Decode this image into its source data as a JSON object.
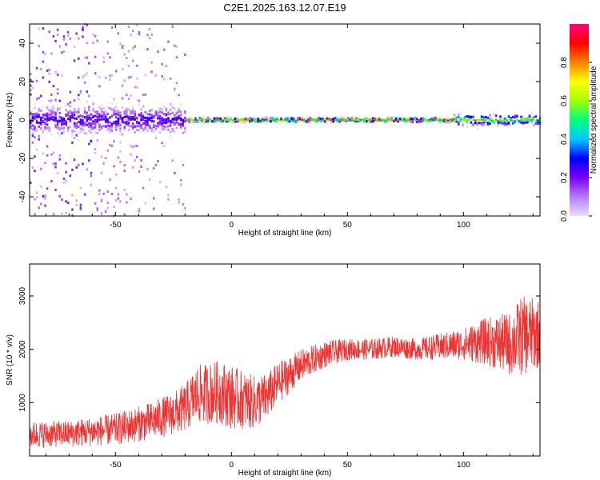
{
  "figure": {
    "title": "C2E1.2025.163.12.07.E19"
  },
  "chart_data": [
    {
      "type": "heatmap",
      "xlabel": "Height of straight line (km)",
      "ylabel": "Frequency (Hz)",
      "xlim": [
        -87,
        133
      ],
      "ylim": [
        -50,
        50
      ],
      "x_ticks": [
        -50,
        0,
        50,
        100
      ],
      "y_ticks": [
        -40,
        -20,
        0,
        20,
        40
      ],
      "colorbar": {
        "label": "Normalized spectral amplitude",
        "range": [
          0,
          1
        ],
        "ticks": [
          0.0,
          0.2,
          0.4,
          0.6,
          0.8
        ],
        "colormap": [
          "#e8e0ff",
          "#b57aff",
          "#7a00ff",
          "#0000ff",
          "#00c8ff",
          "#00ff80",
          "#a0ff00",
          "#ffff00",
          "#ff8000",
          "#ff0000",
          "#ff0080"
        ]
      },
      "ridge": {
        "center_frequency": 0,
        "description_segments": [
          {
            "x_range": [
              -87,
              -20
            ],
            "spread_hz": 6,
            "amplitude": 0.3
          },
          {
            "x_range": [
              -20,
              95
            ],
            "spread_hz": 1,
            "amplitude": 0.95
          },
          {
            "x_range": [
              95,
              133
            ],
            "spread_hz": 2.5,
            "amplitude": 0.75
          }
        ],
        "scatter_region_x": [
          -87,
          -20
        ],
        "scatter_region_amplitude": 0.05
      },
      "line_color": "#000000"
    },
    {
      "type": "line",
      "xlabel": "Height of straight line (km)",
      "ylabel": "SNR (10 * v/v)",
      "xlim": [
        -87,
        133
      ],
      "ylim": [
        0,
        3600
      ],
      "x_ticks": [
        -50,
        0,
        50,
        100
      ],
      "y_ticks": [
        1000,
        2000,
        3000
      ],
      "series": [
        {
          "color": "#ee3333",
          "trend_x": [
            -87,
            -70,
            -50,
            -35,
            -25,
            -20,
            -15,
            -5,
            0,
            10,
            15,
            20,
            30,
            40,
            50,
            60,
            70,
            80,
            90,
            100,
            110,
            120,
            125,
            133
          ],
          "trend_y": [
            400,
            420,
            500,
            650,
            800,
            900,
            1150,
            1200,
            1100,
            1000,
            1100,
            1350,
            1700,
            1900,
            2000,
            2000,
            2050,
            2000,
            2050,
            2100,
            2150,
            2100,
            2250,
            2300
          ],
          "noise_amplitude_y": [
            250,
            250,
            300,
            350,
            400,
            450,
            550,
            600,
            600,
            500,
            450,
            400,
            300,
            250,
            200,
            200,
            200,
            200,
            250,
            300,
            450,
            600,
            750,
            650
          ]
        }
      ]
    }
  ]
}
